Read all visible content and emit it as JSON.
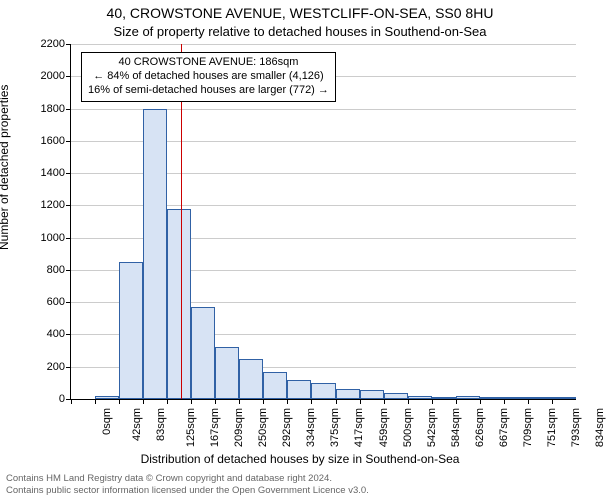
{
  "title": "40, CROWSTONE AVENUE, WESTCLIFF-ON-SEA, SS0 8HU",
  "subtitle": "Size of property relative to detached houses in Southend-on-Sea",
  "xlabel": "Distribution of detached houses by size in Southend-on-Sea",
  "ylabel": "Number of detached properties",
  "footer_line1": "Contains HM Land Registry data © Crown copyright and database right 2024.",
  "footer_line2": "Contains public sector information licensed under the Open Government Licence v3.0.",
  "chart": {
    "type": "histogram",
    "background_color": "#ffffff",
    "grid_color": "#cccccc",
    "axis_color": "#000000",
    "bar_fill": "#d7e3f4",
    "bar_border": "#3061a5",
    "refline_color": "#cc0000",
    "footer_color": "#666666",
    "xlim": [
      0,
      855
    ],
    "ylim": [
      0,
      2200
    ],
    "ytick_step": 200,
    "x_categories": [
      "0sqm",
      "42sqm",
      "83sqm",
      "125sqm",
      "167sqm",
      "209sqm",
      "250sqm",
      "292sqm",
      "334sqm",
      "375sqm",
      "417sqm",
      "459sqm",
      "500sqm",
      "542sqm",
      "584sqm",
      "626sqm",
      "667sqm",
      "709sqm",
      "751sqm",
      "793sqm",
      "834sqm"
    ],
    "values": [
      0,
      20,
      850,
      1800,
      1180,
      570,
      320,
      250,
      170,
      120,
      100,
      65,
      55,
      40,
      20,
      15,
      18,
      10,
      8,
      8,
      5
    ],
    "reference_x": 186,
    "annot": {
      "line1": "40 CROWSTONE AVENUE: 186sqm",
      "line2": "← 84% of detached houses are smaller (4,126)",
      "line3": "16% of semi-detached houses are larger (772) →"
    },
    "title_fontsize": 14,
    "subtitle_fontsize": 13,
    "label_fontsize": 12,
    "tick_fontsize": 11,
    "annot_fontsize": 11,
    "footer_fontsize": 9.5,
    "bar_width_ratio": 1.0
  }
}
